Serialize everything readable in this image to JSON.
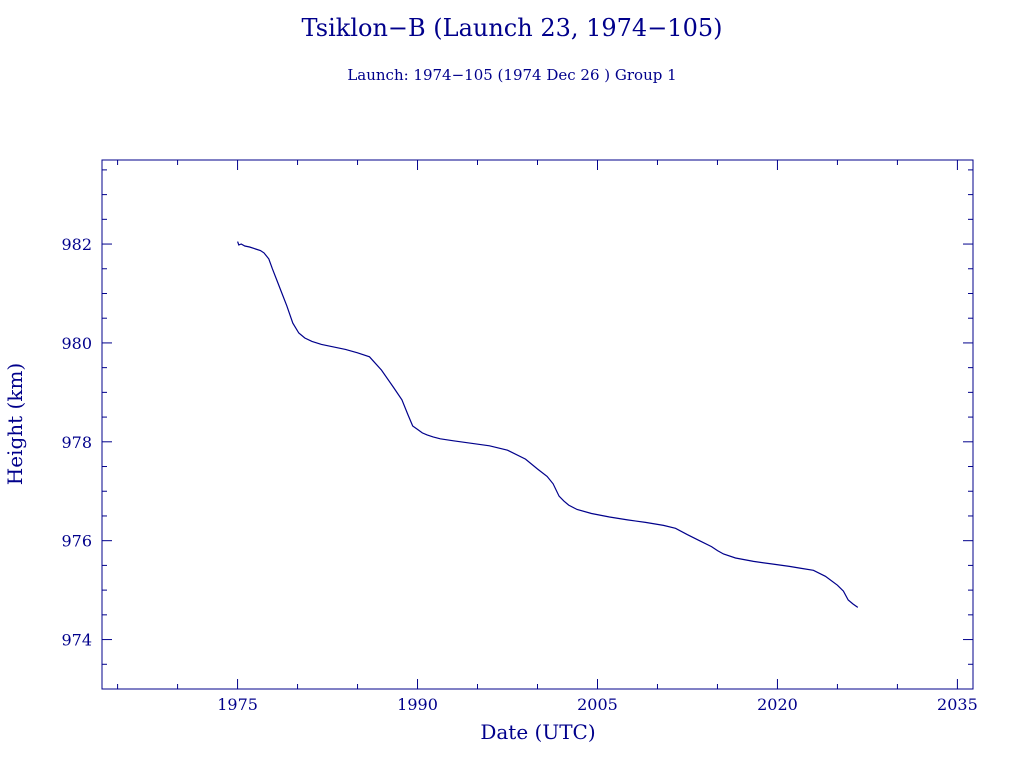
{
  "chart_data": {
    "type": "line",
    "title": "Tsiklon−B (Launch 23, 1974−105)",
    "subtitle": "Launch: 1974−105  (1974 Dec 26 )  Group 1",
    "xlabel": "Date (UTC)",
    "ylabel": "Height (km)",
    "xlim": [
      1963.7,
      2036.3
    ],
    "ylim": [
      973.0,
      983.7
    ],
    "x_ticks": [
      1975,
      1990,
      2005,
      2020,
      2035
    ],
    "y_ticks": [
      974,
      976,
      978,
      980,
      982
    ],
    "grid": false,
    "series": [
      {
        "color": "#00008B",
        "x": [
          1975.0,
          1975.1,
          1975.3,
          1975.6,
          1976.0,
          1976.5,
          1976.9,
          1977.2,
          1977.6,
          1977.9,
          1978.3,
          1978.7,
          1979.1,
          1979.6,
          1980.1,
          1980.6,
          1981.2,
          1982.0,
          1983.0,
          1984.0,
          1985.0,
          1986.0,
          1987.0,
          1988.0,
          1988.7,
          1989.2,
          1989.6,
          1990.0,
          1990.4,
          1990.8,
          1991.3,
          1991.9,
          1993.0,
          1994.5,
          1996.0,
          1997.5,
          1999.0,
          2000.0,
          2000.8,
          2001.3,
          2001.8,
          2002.2,
          2002.6,
          2003.3,
          2004.5,
          2006.0,
          2007.5,
          2009.0,
          2010.5,
          2011.5,
          2012.5,
          2013.5,
          2014.5,
          2015.0,
          2015.5,
          2016.5,
          2018.0,
          2019.5,
          2021.0,
          2022.0,
          2023.0,
          2024.0,
          2025.0,
          2025.5,
          2025.9,
          2026.3,
          2026.7
        ],
        "y": [
          982.05,
          981.98,
          982.0,
          981.96,
          981.94,
          981.9,
          981.87,
          981.82,
          981.7,
          981.5,
          981.25,
          981.0,
          980.75,
          980.4,
          980.2,
          980.1,
          980.03,
          979.97,
          979.92,
          979.87,
          979.8,
          979.72,
          979.45,
          979.1,
          978.85,
          978.55,
          978.32,
          978.25,
          978.18,
          978.14,
          978.1,
          978.06,
          978.02,
          977.97,
          977.92,
          977.83,
          977.65,
          977.45,
          977.3,
          977.15,
          976.9,
          976.8,
          976.72,
          976.63,
          976.55,
          976.48,
          976.42,
          976.37,
          976.31,
          976.25,
          976.12,
          976.0,
          975.88,
          975.8,
          975.73,
          975.65,
          975.58,
          975.53,
          975.48,
          975.44,
          975.4,
          975.28,
          975.1,
          974.98,
          974.8,
          974.72,
          974.65
        ]
      }
    ]
  }
}
